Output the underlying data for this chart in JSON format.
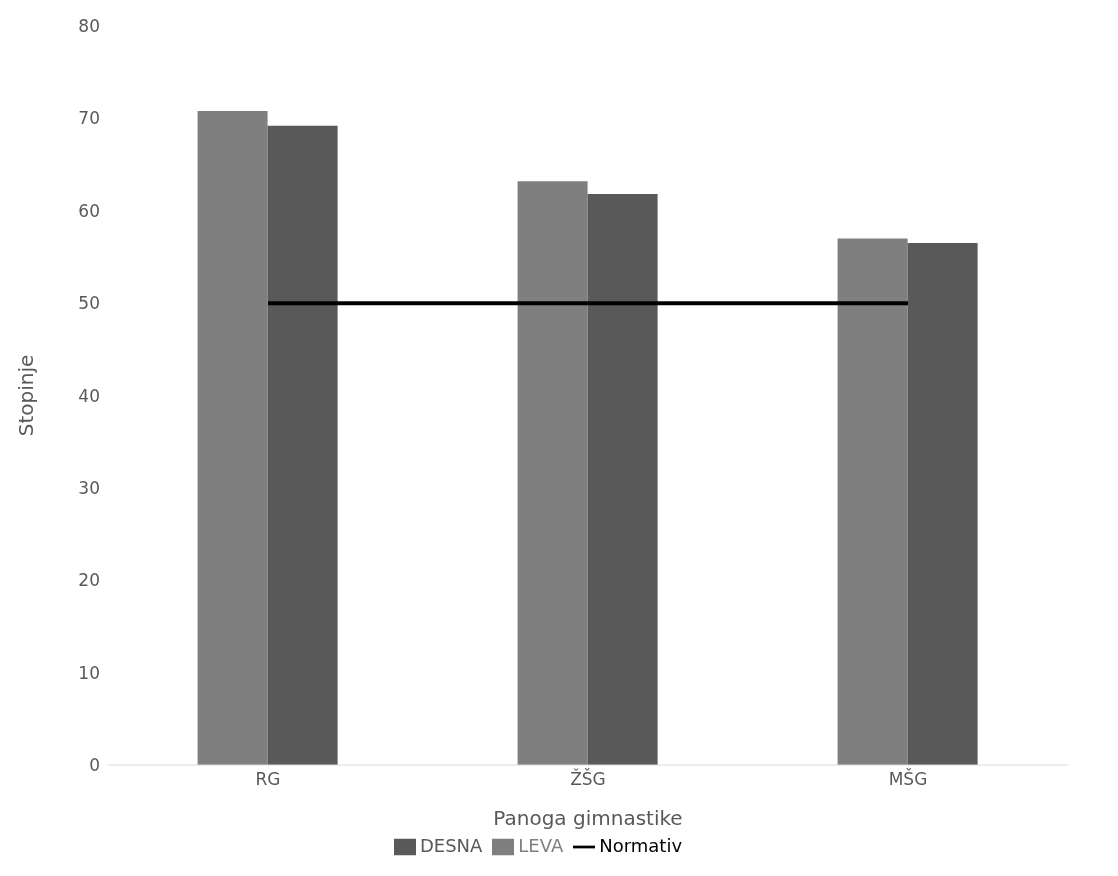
{
  "chart_data": {
    "type": "bar",
    "xlabel": "Panoga gimnastike",
    "ylabel": "Stopinje",
    "categories": [
      "RG",
      "ŽŠG",
      "MŠG"
    ],
    "series": [
      {
        "name": "LEVA",
        "color": "#7f7f7f",
        "values": [
          70.8,
          63.2,
          57.0
        ]
      },
      {
        "name": "DESNA",
        "color": "#595959",
        "values": [
          69.2,
          61.8,
          56.5
        ]
      },
      {
        "name": "Normativ",
        "type": "line",
        "color": "#000000",
        "values": [
          50,
          50,
          50
        ]
      }
    ],
    "ylim": [
      0,
      80
    ],
    "yticks": [
      0,
      10,
      20,
      30,
      40,
      50,
      60,
      70,
      80
    ],
    "grid": false,
    "legend": "bottom",
    "marker": "none"
  }
}
